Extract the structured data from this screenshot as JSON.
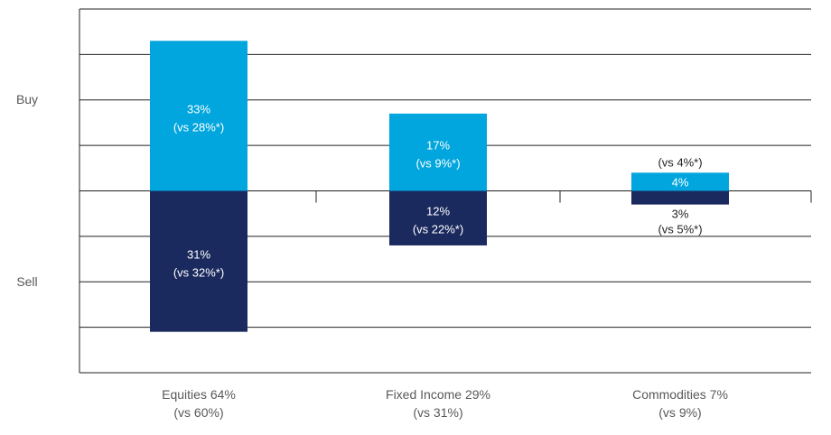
{
  "chart_data": {
    "type": "bar",
    "categories": [
      {
        "name": "Equities 64%",
        "sub": "(vs 60%)"
      },
      {
        "name": "Fixed Income 29%",
        "sub": "(vs 31%)"
      },
      {
        "name": "Commodities 7%",
        "sub": "(vs 9%)"
      }
    ],
    "series": [
      {
        "name": "Buy",
        "color": "#00a6dd",
        "values": [
          33,
          17,
          4
        ],
        "labels": [
          "33%",
          "17%",
          "4%"
        ],
        "comparisons": [
          "(vs 28%*)",
          "(vs 9%*)",
          "(vs 4%*)"
        ]
      },
      {
        "name": "Sell",
        "color": "#1b2a5e",
        "values": [
          -31,
          -12,
          -3
        ],
        "labels": [
          "31%",
          "12%",
          "3%"
        ],
        "comparisons": [
          "(vs 32%*)",
          "(vs 22%*)",
          "(vs 5%*)"
        ]
      }
    ],
    "ylim": [
      -40,
      40
    ],
    "gridlines": [
      40,
      30,
      20,
      10,
      0,
      -10,
      -20,
      -30,
      -40
    ],
    "grid": true,
    "side_labels": [
      "Buy",
      "Sell"
    ]
  }
}
